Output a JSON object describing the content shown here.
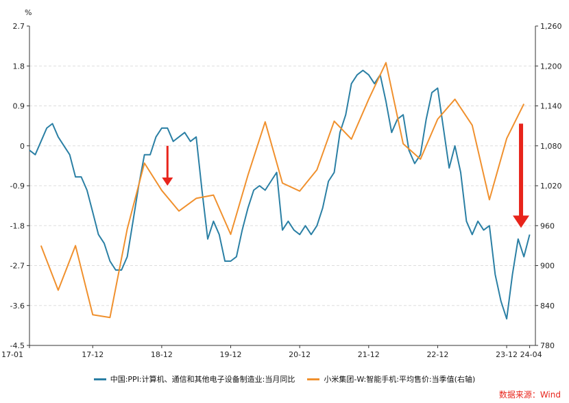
{
  "chart_data": {
    "type": "line",
    "unit_left": "%",
    "y_left": {
      "min": -4.5,
      "max": 2.7,
      "ticks": [
        "2.7",
        "1.8",
        "0.9",
        "0",
        "-0.9",
        "-1.8",
        "-2.7",
        "-3.6",
        "-4.5"
      ]
    },
    "y_right": {
      "min": 780,
      "max": 1260,
      "ticks": [
        "1,260",
        "1,200",
        "1,140",
        "1,080",
        "1,020",
        "960",
        "900",
        "840",
        "780"
      ]
    },
    "x": {
      "min": 0,
      "max": 88,
      "tick_labels": [
        {
          "label": "17-01",
          "i": 0
        },
        {
          "label": "17-12",
          "i": 11
        },
        {
          "label": "18-12",
          "i": 23
        },
        {
          "label": "19-12",
          "i": 35
        },
        {
          "label": "20-12",
          "i": 47
        },
        {
          "label": "21-12",
          "i": 59
        },
        {
          "label": "22-12",
          "i": 71
        },
        {
          "label": "23-12",
          "i": 83
        },
        {
          "label": "24-04",
          "i": 87
        }
      ]
    },
    "series": [
      {
        "name": "中国:PPI:计算机、通信和其他电子设备制造业:当月同比",
        "axis": "left",
        "color": "#2a7fa4",
        "points": [
          [
            0,
            -0.1
          ],
          [
            1,
            -0.2
          ],
          [
            2,
            0.1
          ],
          [
            3,
            0.4
          ],
          [
            4,
            0.5
          ],
          [
            5,
            0.2
          ],
          [
            6,
            0.0
          ],
          [
            7,
            -0.2
          ],
          [
            8,
            -0.7
          ],
          [
            9,
            -0.7
          ],
          [
            10,
            -1.0
          ],
          [
            11,
            -1.5
          ],
          [
            12,
            -2.0
          ],
          [
            13,
            -2.2
          ],
          [
            14,
            -2.6
          ],
          [
            15,
            -2.8
          ],
          [
            16,
            -2.8
          ],
          [
            17,
            -2.5
          ],
          [
            18,
            -1.7
          ],
          [
            19,
            -0.9
          ],
          [
            20,
            -0.2
          ],
          [
            21,
            -0.2
          ],
          [
            22,
            0.2
          ],
          [
            23,
            0.4
          ],
          [
            24,
            0.4
          ],
          [
            25,
            0.1
          ],
          [
            26,
            0.2
          ],
          [
            27,
            0.3
          ],
          [
            28,
            0.1
          ],
          [
            29,
            0.2
          ],
          [
            30,
            -1.0
          ],
          [
            31,
            -2.1
          ],
          [
            32,
            -1.7
          ],
          [
            33,
            -2.0
          ],
          [
            34,
            -2.6
          ],
          [
            35,
            -2.6
          ],
          [
            36,
            -2.5
          ],
          [
            37,
            -1.9
          ],
          [
            38,
            -1.4
          ],
          [
            39,
            -1.0
          ],
          [
            40,
            -0.9
          ],
          [
            41,
            -1.0
          ],
          [
            42,
            -0.8
          ],
          [
            43,
            -0.6
          ],
          [
            44,
            -1.9
          ],
          [
            45,
            -1.7
          ],
          [
            46,
            -1.9
          ],
          [
            47,
            -2.0
          ],
          [
            48,
            -1.8
          ],
          [
            49,
            -2.0
          ],
          [
            50,
            -1.8
          ],
          [
            51,
            -1.4
          ],
          [
            52,
            -0.8
          ],
          [
            53,
            -0.6
          ],
          [
            54,
            0.3
          ],
          [
            55,
            0.7
          ],
          [
            56,
            1.4
          ],
          [
            57,
            1.6
          ],
          [
            58,
            1.7
          ],
          [
            59,
            1.6
          ],
          [
            60,
            1.4
          ],
          [
            61,
            1.6
          ],
          [
            62,
            1.0
          ],
          [
            63,
            0.3
          ],
          [
            64,
            0.6
          ],
          [
            65,
            0.7
          ],
          [
            66,
            -0.1
          ],
          [
            67,
            -0.4
          ],
          [
            68,
            -0.2
          ],
          [
            69,
            0.6
          ],
          [
            70,
            1.2
          ],
          [
            71,
            1.3
          ],
          [
            72,
            0.4
          ],
          [
            73,
            -0.5
          ],
          [
            74,
            0.0
          ],
          [
            75,
            -0.6
          ],
          [
            76,
            -1.7
          ],
          [
            77,
            -2.0
          ],
          [
            78,
            -1.7
          ],
          [
            79,
            -1.9
          ],
          [
            80,
            -1.8
          ],
          [
            81,
            -2.9
          ],
          [
            82,
            -3.5
          ],
          [
            83,
            -3.9
          ],
          [
            84,
            -2.9
          ],
          [
            85,
            -2.1
          ],
          [
            86,
            -2.5
          ],
          [
            87,
            -2.0
          ]
        ]
      },
      {
        "name": "小米集团-W:智能手机:平均售价:当季值(右轴)",
        "axis": "right",
        "color": "#f0902d",
        "points": [
          [
            2,
            930
          ],
          [
            5,
            863
          ],
          [
            8,
            930
          ],
          [
            11,
            826
          ],
          [
            14,
            822
          ],
          [
            17,
            955
          ],
          [
            20,
            1054
          ],
          [
            23,
            1013
          ],
          [
            26,
            982
          ],
          [
            29,
            1001
          ],
          [
            32,
            1006
          ],
          [
            35,
            947
          ],
          [
            38,
            1036
          ],
          [
            41,
            1116
          ],
          [
            44,
            1024
          ],
          [
            47,
            1012
          ],
          [
            50,
            1044
          ],
          [
            53,
            1117
          ],
          [
            56,
            1090
          ],
          [
            59,
            1150
          ],
          [
            62,
            1205
          ],
          [
            65,
            1083
          ],
          [
            68,
            1060
          ],
          [
            71,
            1120
          ],
          [
            74,
            1150
          ],
          [
            77,
            1111
          ],
          [
            80,
            999
          ],
          [
            83,
            1091
          ],
          [
            86,
            1143
          ]
        ]
      }
    ],
    "annotations": [
      {
        "type": "arrow",
        "direction": "down",
        "color": "#e8241b",
        "x": 24,
        "y_from": 0.0,
        "y_to": -0.9
      },
      {
        "type": "arrow",
        "direction": "down",
        "color": "#e8241b",
        "x": 85.5,
        "y_from": 0.5,
        "y_to": -1.85
      }
    ],
    "legend": "bottom",
    "grid": "horizontal dashed"
  },
  "source_text": "数据来源：Wind"
}
